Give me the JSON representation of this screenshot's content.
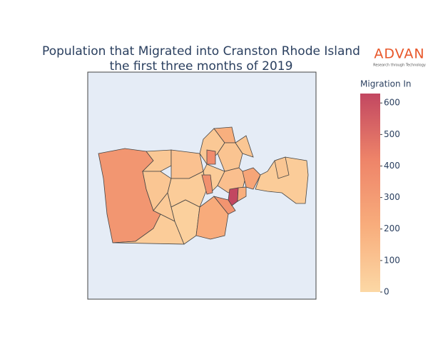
{
  "chart_data": {
    "type": "choropleth",
    "title": [
      "Population that Migrated into Cranston Rhode Island",
      "the first three months of 2019"
    ],
    "logo": {
      "name": "ADVAN",
      "tagline": "Research through Technology"
    },
    "values": [
      330,
      80,
      90,
      70,
      60,
      110,
      60,
      40,
      220,
      340,
      80,
      380,
      200,
      100,
      60,
      360,
      120,
      630,
      200,
      250,
      60,
      90,
      90
    ],
    "colorscale": [
      "#fcd8a5",
      "#f8ad7c",
      "#ee8469",
      "#c24761"
    ],
    "colorbar": {
      "title": "Migration In",
      "lim": [
        0,
        630
      ],
      "ticks": [
        0,
        100,
        200,
        300,
        400,
        500,
        600
      ]
    }
  }
}
